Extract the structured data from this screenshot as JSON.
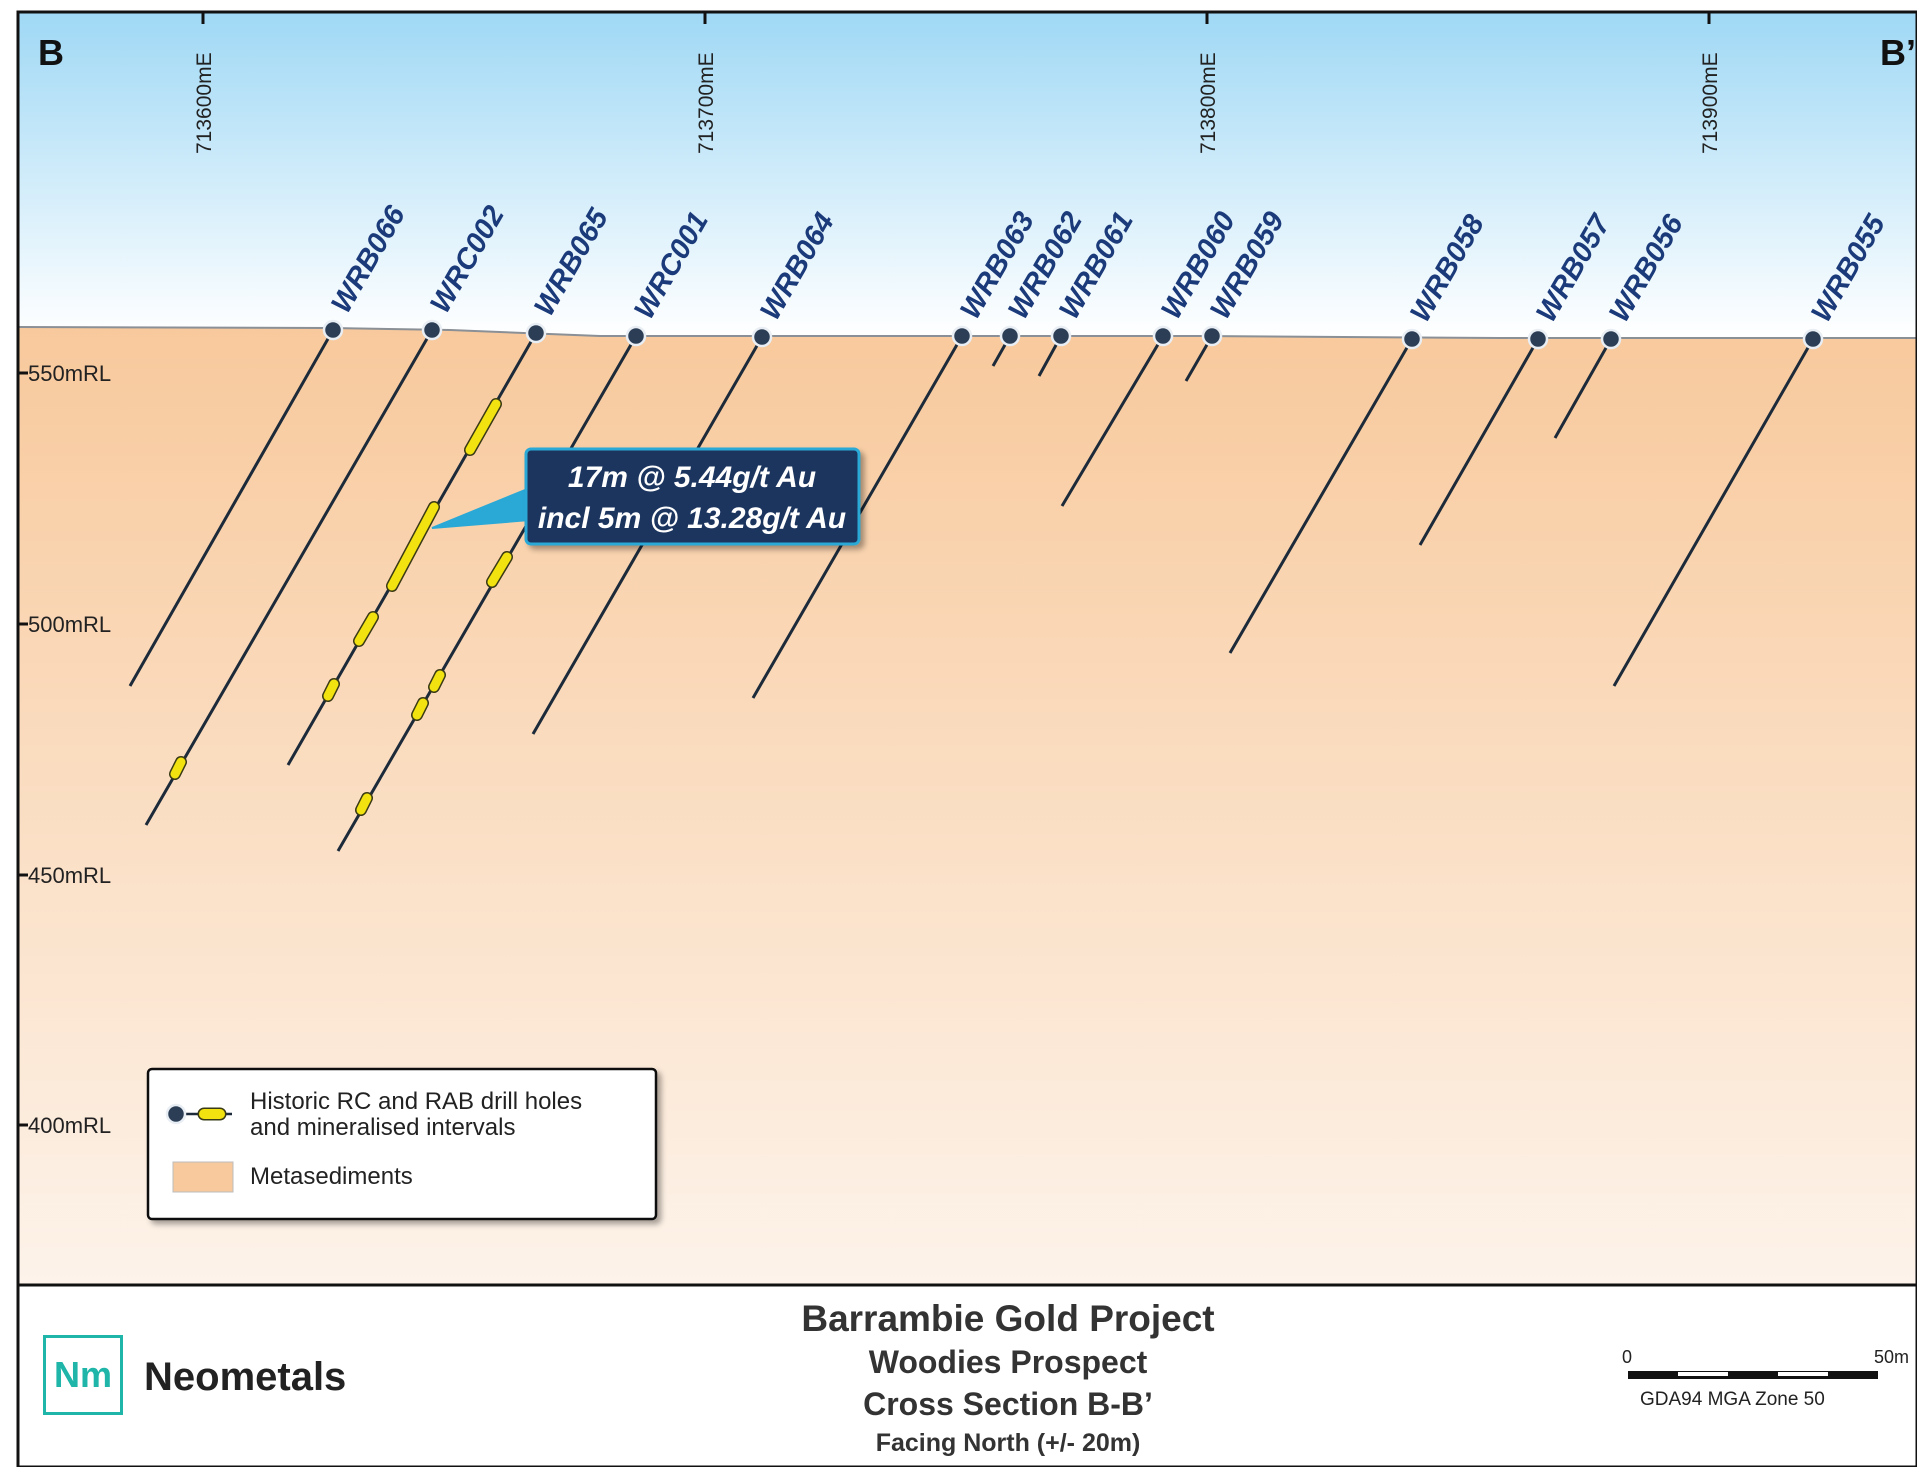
{
  "section": {
    "label_left": "B",
    "label_right": "B’",
    "eastings": [
      "713600mE",
      "713700mE",
      "713800mE",
      "713900mE"
    ],
    "rl_labels": [
      "550mRL",
      "500mRL",
      "450mRL",
      "400mRL"
    ],
    "holes": [
      "WRB066",
      "WRC002",
      "WRB065",
      "WRC001",
      "WRB064",
      "WRB063",
      "WRB062",
      "WRB061",
      "WRB060",
      "WRB059",
      "WRB058",
      "WRB057",
      "WRB056",
      "WRB055"
    ]
  },
  "callout": {
    "line1": "17m @ 5.44g/t Au",
    "line2": "incl 5m @ 13.28g/t Au"
  },
  "legend": {
    "drill_line1": "Historic RC and RAB drill holes",
    "drill_line2": "and mineralised intervals",
    "metasediments": "Metasediments"
  },
  "footer": {
    "logo_mark": "Nm",
    "logo_name": "Neometals",
    "title": "Barrambie Gold Project",
    "prospect": "Woodies Prospect",
    "section": "Cross Section B-B’",
    "facing": "Facing North (+/- 20m)",
    "scale_start": "0",
    "scale_end": "50m",
    "projection": "GDA94 MGA Zone 50"
  },
  "colors": {
    "sky_top": "#9fd8f5",
    "ground_top": "#f8c99c",
    "ground_bottom": "#fdf3ea",
    "hole": "#1c2a3a",
    "collar": "#2c3e55",
    "mineralised": "#f2e20f",
    "callout_fill": "#1b355e"
  }
}
